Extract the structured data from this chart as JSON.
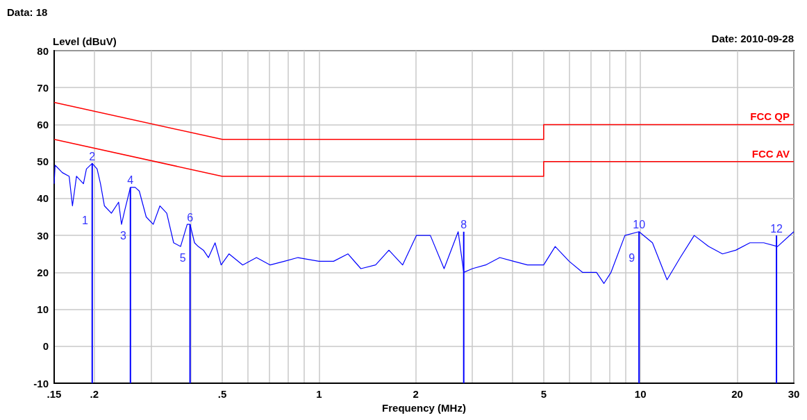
{
  "chart_data": {
    "type": "line",
    "xlabel": "Frequency (MHz)",
    "ylabel": "Level (dBuV)",
    "annotations": [
      "Data: 18",
      "Date: 2010-09-28",
      {
        "text": "1",
        "x": 0.197,
        "y": 34
      },
      {
        "text": "2",
        "x": 0.197,
        "y": 49.5
      },
      {
        "text": "3",
        "x": 0.259,
        "y": 30
      },
      {
        "text": "4",
        "x": 0.259,
        "y": 43
      },
      {
        "text": "5",
        "x": 0.397,
        "y": 24
      },
      {
        "text": "6",
        "x": 0.397,
        "y": 33
      },
      {
        "text": "8",
        "x": 2.82,
        "y": 31
      },
      {
        "text": "9",
        "x": 9.9,
        "y": 24
      },
      {
        "text": "10",
        "x": 9.9,
        "y": 31
      },
      {
        "text": "12",
        "x": 26.5,
        "y": 30
      }
    ],
    "log": "x",
    "grid": true,
    "legend": false,
    "marker": "none",
    "line_style": "solid",
    "xlim": [
      0.15,
      30
    ],
    "ylim": [
      -10,
      80
    ],
    "xticks": [
      {
        "value": 0.15,
        "label": ".15"
      },
      {
        "value": 0.2,
        "label": ".2"
      },
      {
        "value": 0.3,
        "label": null
      },
      {
        "value": 0.4,
        "label": null
      },
      {
        "value": 0.5,
        "label": ".5"
      },
      {
        "value": 0.6,
        "label": null
      },
      {
        "value": 0.7,
        "label": null
      },
      {
        "value": 0.8,
        "label": null
      },
      {
        "value": 0.9,
        "label": null
      },
      1,
      2,
      {
        "value": 3,
        "label": null
      },
      {
        "value": 4,
        "label": null
      },
      5,
      {
        "value": 6,
        "label": null
      },
      {
        "value": 7,
        "label": null
      },
      {
        "value": 8,
        "label": null
      },
      {
        "value": 9,
        "label": null
      },
      10,
      20,
      30
    ],
    "yticks": [
      -10,
      0,
      10,
      20,
      30,
      40,
      50,
      60,
      70,
      80
    ],
    "series": [
      {
        "color": "#0000ff",
        "x": [
          0.15,
          0.151,
          0.159,
          0.167,
          0.171,
          0.176,
          0.185,
          0.189,
          0.197,
          0.204,
          0.209,
          0.215,
          0.226,
          0.238,
          0.243,
          0.249,
          0.259,
          0.268,
          0.276,
          0.29,
          0.305,
          0.32,
          0.336,
          0.353,
          0.371,
          0.389,
          0.397,
          0.41,
          0.421,
          0.437,
          0.453,
          0.475,
          0.496,
          0.525,
          0.579,
          0.639,
          0.705,
          0.78,
          0.86,
          1.0,
          1.11,
          1.23,
          1.35,
          1.5,
          1.65,
          1.82,
          2.01,
          2.22,
          2.45,
          2.71,
          2.82,
          3.0,
          3.3,
          3.65,
          4.03,
          4.45,
          5.0,
          5.43,
          6.0,
          6.6,
          7.3,
          7.7,
          8.1,
          8.95,
          9.9,
          10.9,
          12.1,
          13.3,
          14.7,
          16.3,
          18.0,
          19.8,
          21.9,
          24.2,
          26.7,
          30
        ],
        "values": [
          44,
          49,
          47,
          46,
          38,
          46,
          44,
          48,
          49.5,
          48,
          44,
          38,
          36,
          39,
          33,
          37,
          43,
          43,
          42,
          35,
          33,
          38,
          36,
          28,
          27,
          33,
          33,
          28,
          27,
          26,
          24,
          28,
          22,
          25,
          22,
          24,
          22,
          23,
          24,
          23,
          23,
          25,
          21,
          22,
          26,
          22,
          30,
          30,
          21,
          31,
          20,
          21,
          22,
          24,
          23,
          22,
          22,
          27,
          23,
          20,
          20,
          17,
          20,
          30,
          31,
          28,
          18,
          24,
          30,
          27,
          25,
          26,
          28,
          28,
          27,
          31
        ]
      },
      {
        "type": "bar",
        "color": "#0000ff",
        "x": [
          0.197,
          0.259,
          0.397,
          2.82,
          9.9,
          26.5
        ],
        "base": [
          -10,
          -10,
          -10,
          -10,
          -10,
          -10
        ],
        "values": [
          59.5,
          53,
          43,
          41,
          41,
          40
        ]
      },
      {
        "name": "FCC QP",
        "color": "#ff0000",
        "x": [
          0.15,
          0.5,
          5,
          5,
          30
        ],
        "values": [
          66,
          56,
          56,
          60,
          60
        ]
      },
      {
        "name": "FCC AV",
        "color": "#ff0000",
        "x": [
          0.15,
          0.5,
          5,
          5,
          30
        ],
        "values": [
          56,
          46,
          46,
          50,
          50
        ]
      }
    ]
  }
}
